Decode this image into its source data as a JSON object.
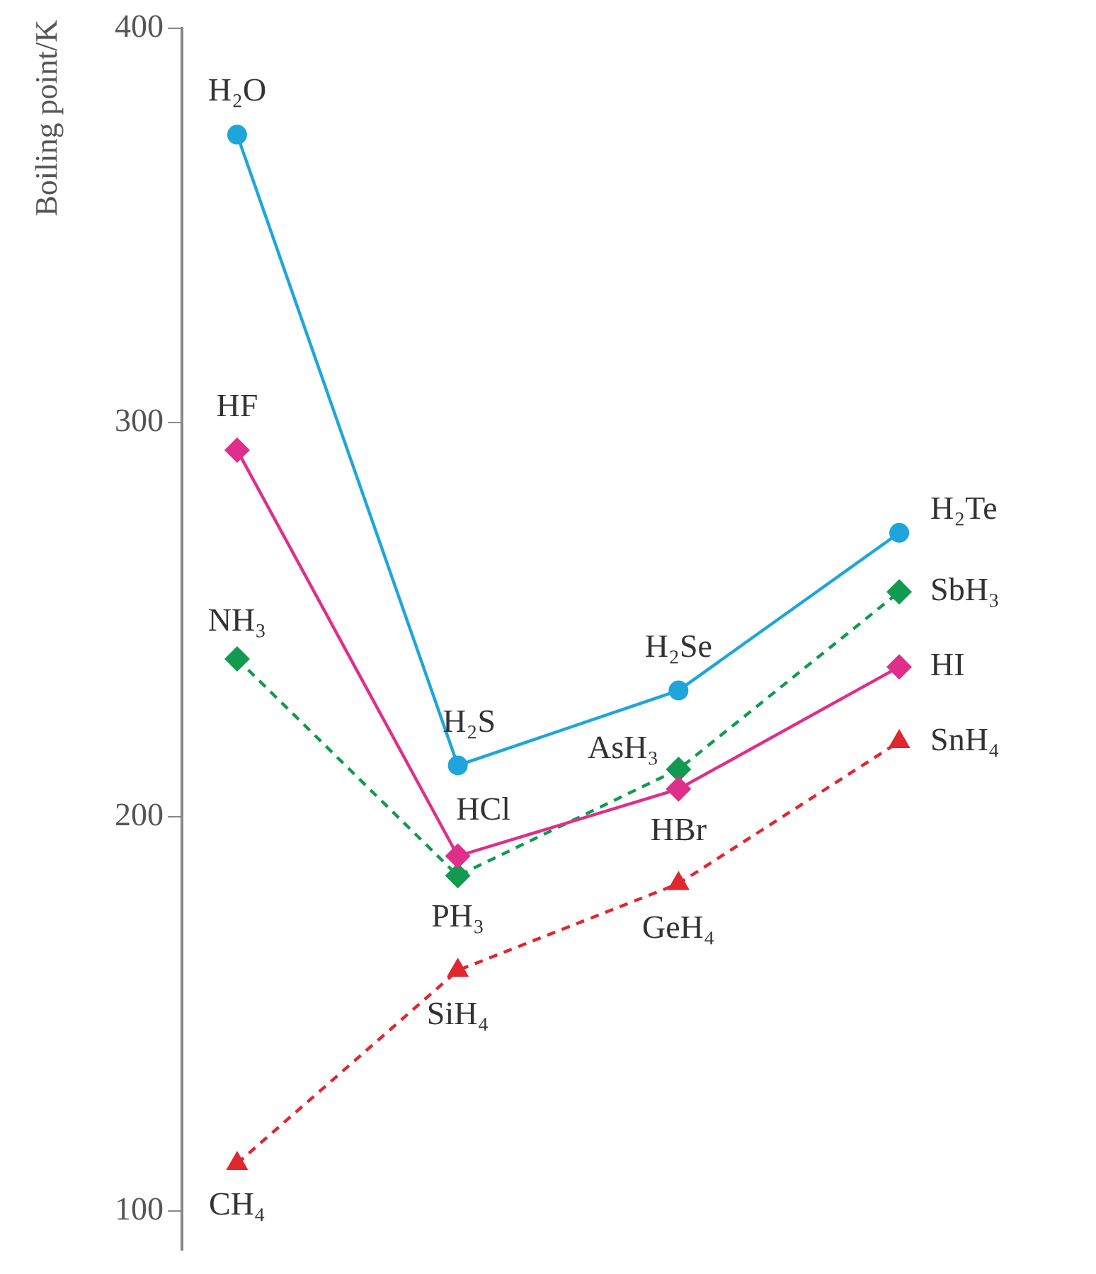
{
  "chart_data": {
    "type": "line",
    "ylabel": "Boiling point/K",
    "categories": [
      null,
      null,
      null,
      null
    ],
    "ylim": [
      90,
      400
    ],
    "yticks": [
      100,
      200,
      300,
      400
    ],
    "grid": false,
    "legend": false,
    "series": [
      {
        "color": "#1ea6dc",
        "marker": "circle",
        "line_style": "solid",
        "values": [
          373,
          213,
          232,
          272
        ],
        "value_labels": [
          "H₂O",
          "H₂S",
          "H₂Se",
          "H₂Te"
        ]
      },
      {
        "color": "#df2f8a",
        "marker": "diamond",
        "line_style": "solid",
        "values": [
          293,
          190,
          207,
          238
        ],
        "value_labels": [
          "HF",
          "HCl",
          "HBr",
          "HI"
        ]
      },
      {
        "color": "#129a50",
        "marker": "diamond",
        "line_style": "dashed",
        "values": [
          240,
          185,
          212,
          257
        ],
        "value_labels": [
          "NH₃",
          "PH₃",
          "AsH₃",
          "SbH₃"
        ]
      },
      {
        "color": "#e0262e",
        "marker": "triangle",
        "line_style": "dashed",
        "values": [
          112,
          161,
          183,
          219
        ],
        "value_labels": [
          "CH₄",
          "SiH₄",
          "GeH₄",
          "SnH₄"
        ]
      }
    ]
  }
}
